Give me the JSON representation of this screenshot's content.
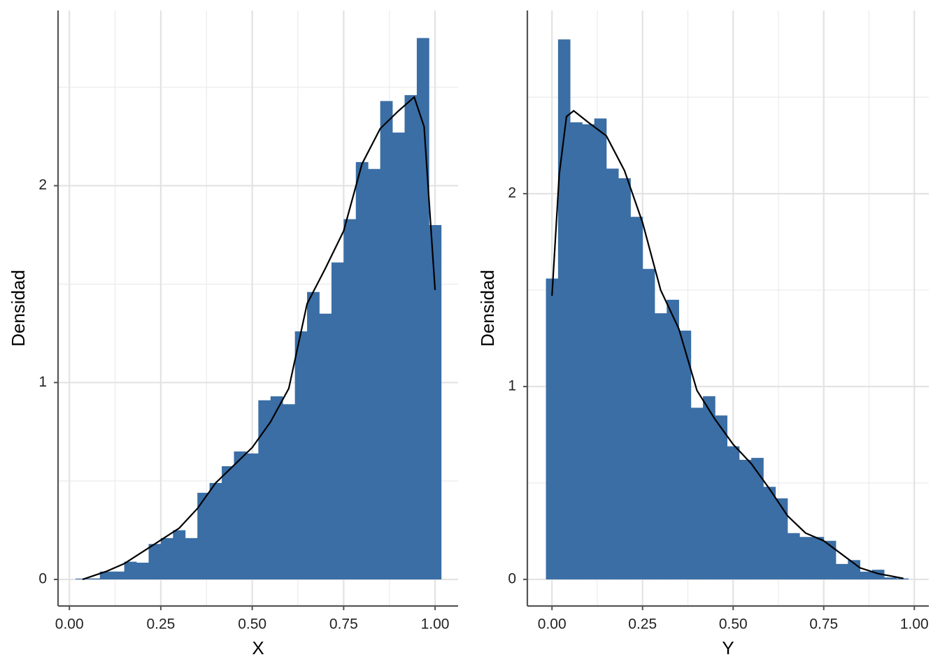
{
  "chart_data": [
    {
      "type": "histogram",
      "x_label": "X",
      "y_label": "Densidad",
      "color": "#3a6ea5",
      "grid": true,
      "bins": [
        0.0167,
        0.05,
        0.0833,
        0.1167,
        0.15,
        0.1833,
        0.2167,
        0.25,
        0.2833,
        0.3167,
        0.35,
        0.3833,
        0.4167,
        0.45,
        0.4833,
        0.5167,
        0.55,
        0.5833,
        0.6167,
        0.65,
        0.6833,
        0.7167,
        0.75,
        0.7833,
        0.8167,
        0.85,
        0.8833,
        0.9167,
        0.95,
        0.9833,
        1.0167
      ],
      "values": [
        0.004,
        0.005,
        0.04,
        0.04,
        0.09,
        0.085,
        0.18,
        0.21,
        0.25,
        0.21,
        0.44,
        0.49,
        0.575,
        0.65,
        0.64,
        0.91,
        0.93,
        0.89,
        1.26,
        1.46,
        1.35,
        1.61,
        1.83,
        2.12,
        2.085,
        2.43,
        2.27,
        2.46,
        2.75,
        1.8
      ],
      "density": {
        "color": "#000000",
        "x": [
          0.036,
          0.1,
          0.15,
          0.2,
          0.25,
          0.3,
          0.35,
          0.4,
          0.45,
          0.5,
          0.55,
          0.6,
          0.65,
          0.7,
          0.75,
          0.8,
          0.85,
          0.9,
          0.943,
          0.97,
          1.0
        ],
        "y": [
          0.0,
          0.04,
          0.08,
          0.14,
          0.2,
          0.26,
          0.36,
          0.49,
          0.58,
          0.67,
          0.8,
          0.97,
          1.4,
          1.58,
          1.77,
          2.11,
          2.29,
          2.38,
          2.45,
          2.3,
          1.47
        ]
      },
      "xlim": [
        -0.031,
        1.063
      ],
      "ylim": [
        -0.135,
        2.89
      ],
      "xticks": [
        {
          "value": 0,
          "label": "0.00"
        },
        {
          "value": 0.25,
          "label": "0.25"
        },
        {
          "value": 0.5,
          "label": "0.50"
        },
        {
          "value": 0.75,
          "label": "0.75"
        },
        {
          "value": 1,
          "label": "1.00"
        }
      ],
      "yticks": [
        0,
        1,
        2
      ],
      "x_minor_grid": [
        0.125,
        0.375,
        0.625,
        0.875
      ],
      "y_minor_grid": [
        0.5,
        1.5,
        2.5
      ]
    },
    {
      "type": "histogram",
      "x_label": "Y",
      "y_label": "Densidad",
      "color": "#3a6ea5",
      "grid": true,
      "bins": [
        -0.0167,
        0.0167,
        0.05,
        0.0833,
        0.1167,
        0.15,
        0.1833,
        0.2167,
        0.25,
        0.2833,
        0.3167,
        0.35,
        0.3833,
        0.4167,
        0.45,
        0.4833,
        0.5167,
        0.55,
        0.5833,
        0.6167,
        0.65,
        0.6833,
        0.7167,
        0.75,
        0.7833,
        0.8167,
        0.85,
        0.8833,
        0.9167,
        0.95,
        0.9833
      ],
      "values": [
        1.56,
        2.8,
        2.37,
        2.36,
        2.39,
        2.13,
        2.08,
        1.88,
        1.61,
        1.38,
        1.45,
        1.29,
        0.89,
        0.95,
        0.85,
        0.69,
        0.62,
        0.63,
        0.48,
        0.42,
        0.24,
        0.22,
        0.22,
        0.2,
        0.08,
        0.1,
        0.04,
        0.05,
        0.01,
        0.005
      ],
      "density": {
        "color": "#000000",
        "x": [
          0.0,
          0.02,
          0.04,
          0.06,
          0.1,
          0.15,
          0.2,
          0.25,
          0.3,
          0.35,
          0.4,
          0.45,
          0.5,
          0.55,
          0.6,
          0.65,
          0.7,
          0.75,
          0.8,
          0.85,
          0.9,
          0.97
        ],
        "y": [
          1.47,
          2.1,
          2.4,
          2.43,
          2.37,
          2.3,
          2.12,
          1.85,
          1.5,
          1.3,
          0.98,
          0.83,
          0.7,
          0.6,
          0.47,
          0.33,
          0.24,
          0.2,
          0.13,
          0.06,
          0.03,
          0.005
        ]
      },
      "xlim": [
        -0.068,
        1.04
      ],
      "ylim": [
        -0.138,
        2.95
      ],
      "xticks": [
        {
          "value": 0,
          "label": "0.00"
        },
        {
          "value": 0.25,
          "label": "0.25"
        },
        {
          "value": 0.5,
          "label": "0.50"
        },
        {
          "value": 0.75,
          "label": "0.75"
        },
        {
          "value": 1,
          "label": "1.00"
        }
      ],
      "yticks": [
        0,
        1,
        2
      ],
      "x_minor_grid": [
        0.125,
        0.375,
        0.625,
        0.875
      ],
      "y_minor_grid": [
        0.5,
        1.5,
        2.5
      ]
    }
  ]
}
